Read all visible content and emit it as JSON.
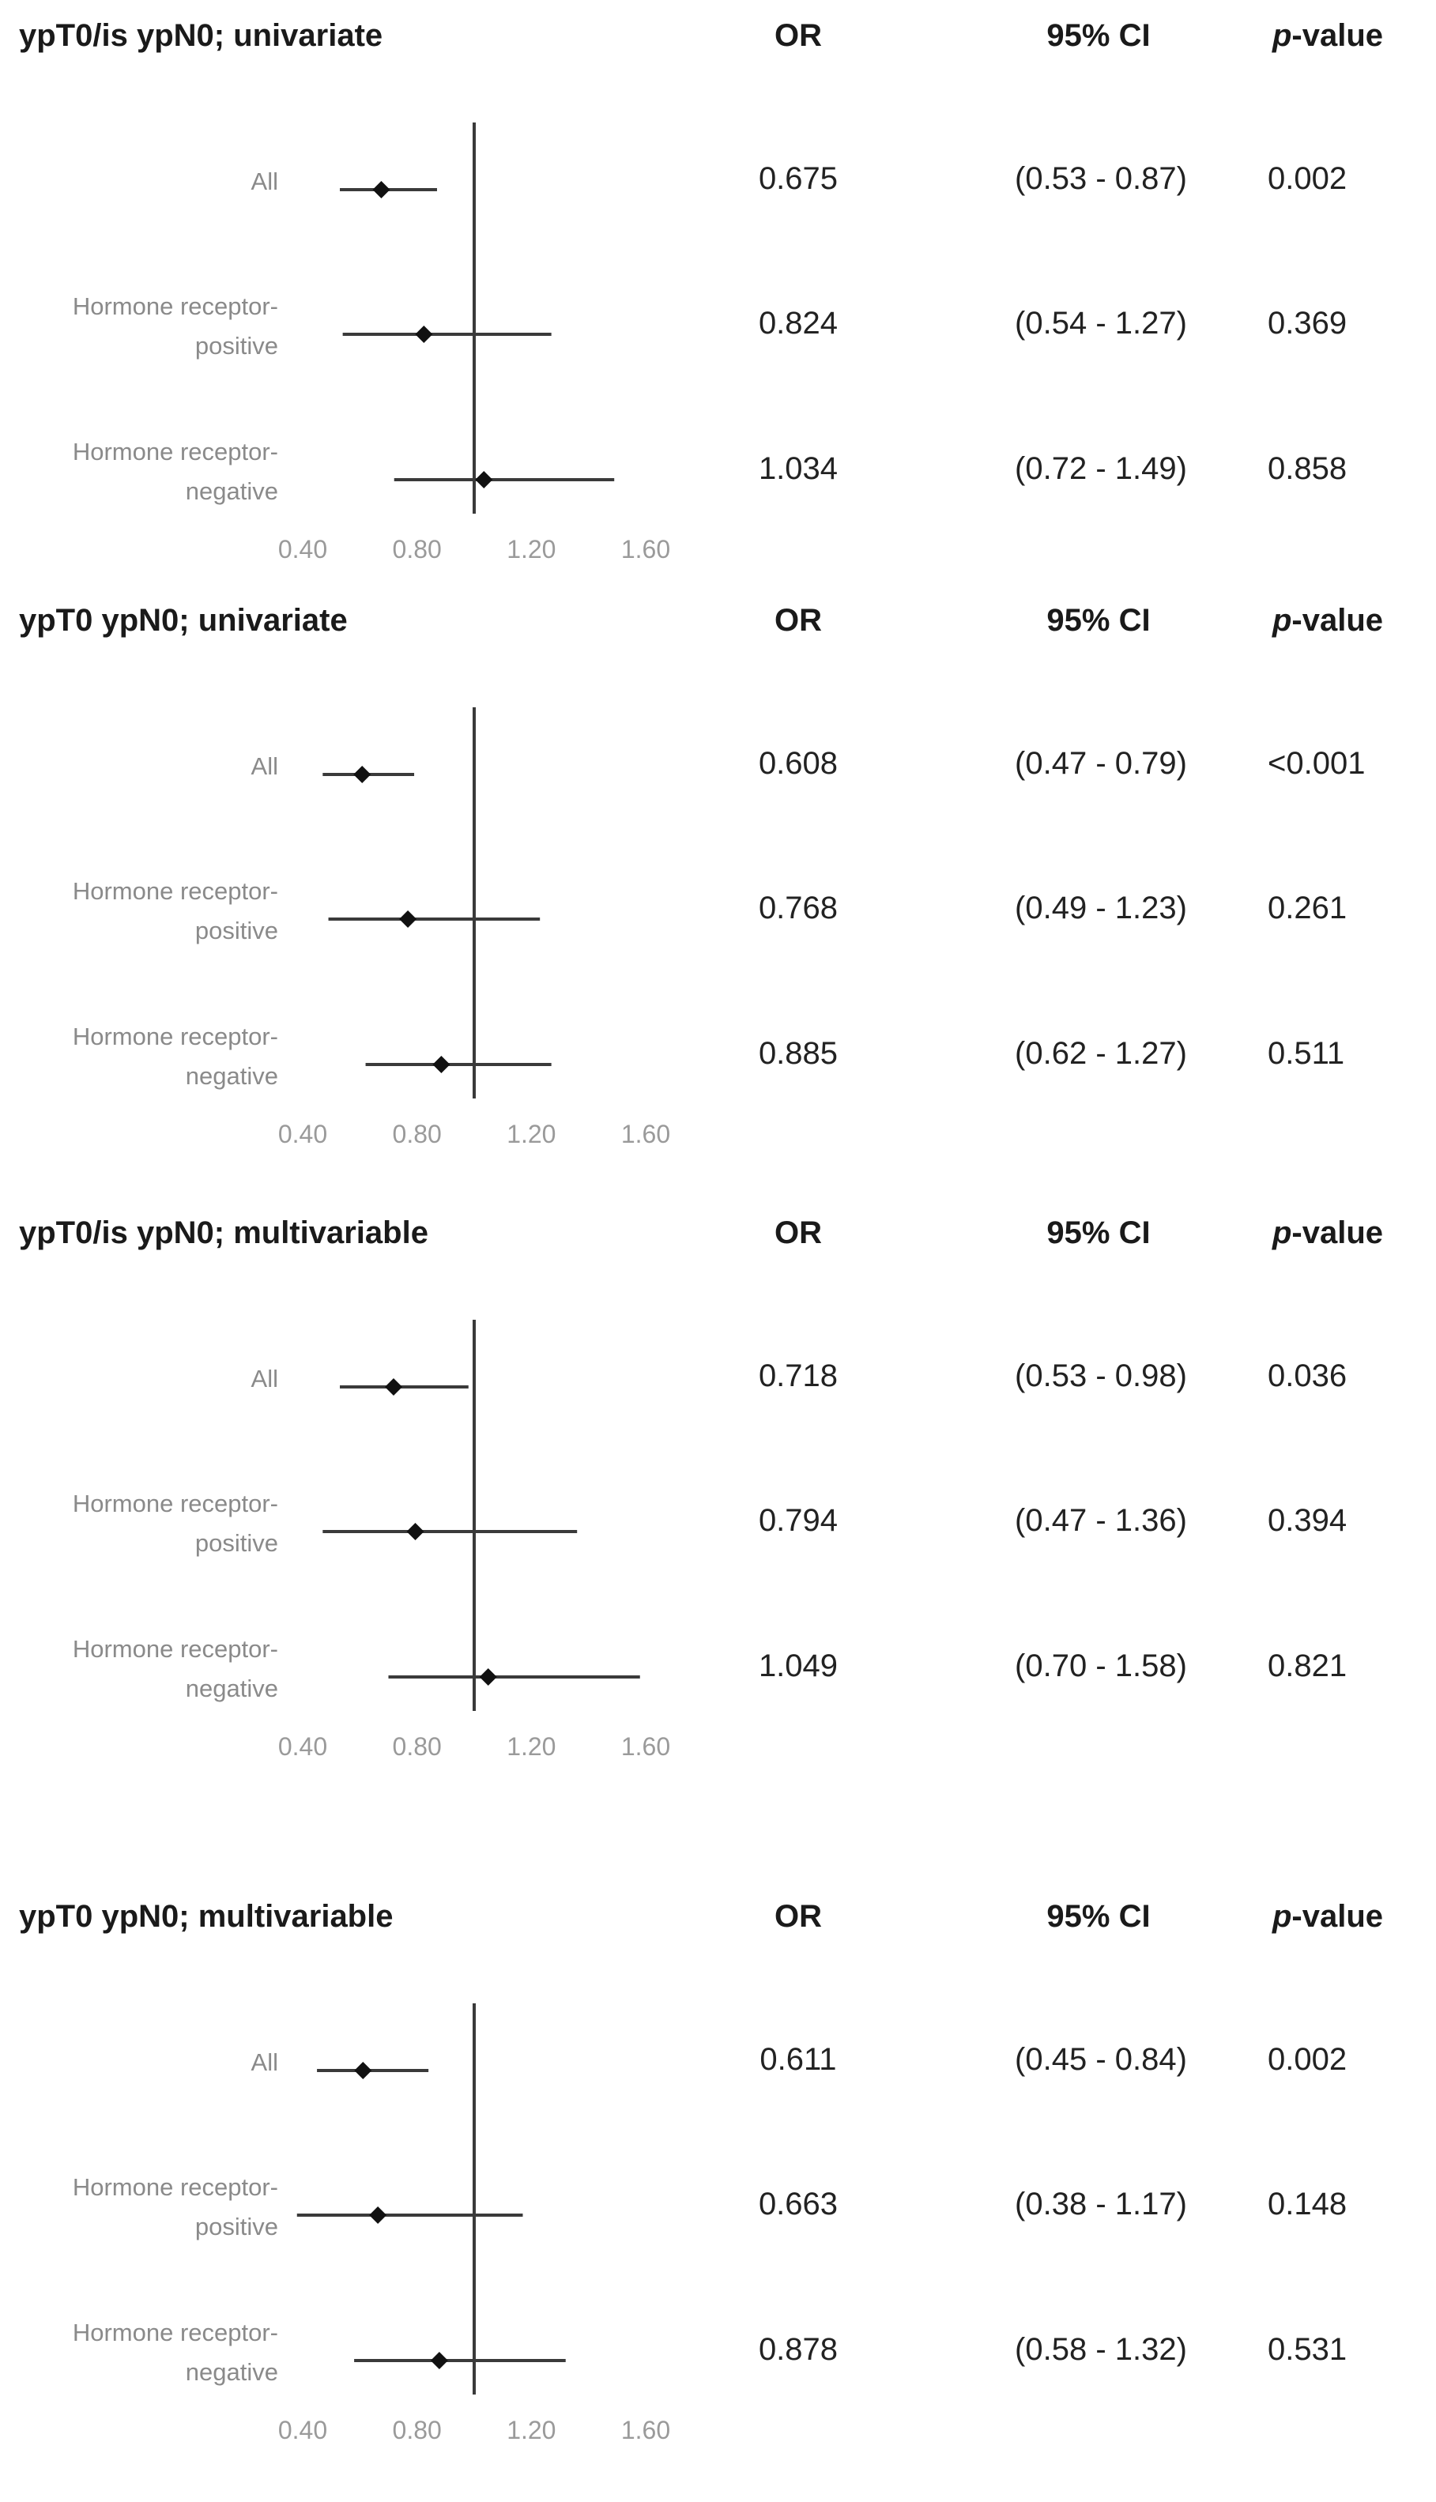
{
  "colors": {
    "line": "#3a3a3a",
    "marker": "#111111",
    "tick_text": "#9a9a9a",
    "label_text": "#8a8a8a"
  },
  "chart_data": [
    {
      "type": "forest",
      "title": "ypT0/is ypN0; univariate",
      "headers": {
        "or": "OR",
        "ci": "95% CI",
        "p_italic": "p",
        "p_rest": "-value"
      },
      "xlim": [
        0.4,
        1.6
      ],
      "xticks": [
        0.4,
        0.8,
        1.2,
        1.6
      ],
      "xtick_labels": [
        "0.40",
        "0.80",
        "1.20",
        "1.60"
      ],
      "reference_line": 1.0,
      "grid": false,
      "rows": [
        {
          "label_lines": [
            "All"
          ],
          "or": 0.675,
          "lo": 0.53,
          "hi": 0.87,
          "or_text": "0.675",
          "ci_text": "(0.53 - 0.87)",
          "p_text": "0.002"
        },
        {
          "label_lines": [
            "Hormone receptor-",
            "positive"
          ],
          "or": 0.824,
          "lo": 0.54,
          "hi": 1.27,
          "or_text": "0.824",
          "ci_text": "(0.54 - 1.27)",
          "p_text": "0.369"
        },
        {
          "label_lines": [
            "Hormone receptor-",
            "negative"
          ],
          "or": 1.034,
          "lo": 0.72,
          "hi": 1.49,
          "or_text": "1.034",
          "ci_text": "(0.72 - 1.49)",
          "p_text": "0.858"
        }
      ]
    },
    {
      "type": "forest",
      "title": "ypT0 ypN0; univariate",
      "headers": {
        "or": "OR",
        "ci": "95% CI",
        "p_italic": "p",
        "p_rest": "-value"
      },
      "xlim": [
        0.4,
        1.6
      ],
      "xticks": [
        0.4,
        0.8,
        1.2,
        1.6
      ],
      "xtick_labels": [
        "0.40",
        "0.80",
        "1.20",
        "1.60"
      ],
      "reference_line": 1.0,
      "grid": false,
      "rows": [
        {
          "label_lines": [
            "All"
          ],
          "or": 0.608,
          "lo": 0.47,
          "hi": 0.79,
          "or_text": "0.608",
          "ci_text": "(0.47 - 0.79)",
          "p_text": "<0.001"
        },
        {
          "label_lines": [
            "Hormone receptor-",
            "positive"
          ],
          "or": 0.768,
          "lo": 0.49,
          "hi": 1.23,
          "or_text": "0.768",
          "ci_text": "(0.49 - 1.23)",
          "p_text": "0.261"
        },
        {
          "label_lines": [
            "Hormone receptor-",
            "negative"
          ],
          "or": 0.885,
          "lo": 0.62,
          "hi": 1.27,
          "or_text": "0.885",
          "ci_text": "(0.62 - 1.27)",
          "p_text": "0.511"
        }
      ]
    },
    {
      "type": "forest",
      "title": "ypT0/is ypN0; multivariable",
      "headers": {
        "or": "OR",
        "ci": "95% CI",
        "p_italic": "p",
        "p_rest": "-value"
      },
      "xlim": [
        0.4,
        1.6
      ],
      "xticks": [
        0.4,
        0.8,
        1.2,
        1.6
      ],
      "xtick_labels": [
        "0.40",
        "0.80",
        "1.20",
        "1.60"
      ],
      "reference_line": 1.0,
      "grid": false,
      "rows": [
        {
          "label_lines": [
            "All"
          ],
          "or": 0.718,
          "lo": 0.53,
          "hi": 0.98,
          "or_text": "0.718",
          "ci_text": "(0.53 - 0.98)",
          "p_text": "0.036"
        },
        {
          "label_lines": [
            "Hormone receptor-",
            "positive"
          ],
          "or": 0.794,
          "lo": 0.47,
          "hi": 1.36,
          "or_text": "0.794",
          "ci_text": "(0.47 - 1.36)",
          "p_text": "0.394"
        },
        {
          "label_lines": [
            "Hormone receptor-",
            "negative"
          ],
          "or": 1.049,
          "lo": 0.7,
          "hi": 1.58,
          "or_text": "1.049",
          "ci_text": "(0.70 - 1.58)",
          "p_text": "0.821"
        }
      ]
    },
    {
      "type": "forest",
      "title": "ypT0 ypN0; multivariable",
      "headers": {
        "or": "OR",
        "ci": "95% CI",
        "p_italic": "p",
        "p_rest": "-value"
      },
      "xlim": [
        0.4,
        1.6
      ],
      "xticks": [
        0.4,
        0.8,
        1.2,
        1.6
      ],
      "xtick_labels": [
        "0.40",
        "0.80",
        "1.20",
        "1.60"
      ],
      "reference_line": 1.0,
      "grid": false,
      "rows": [
        {
          "label_lines": [
            "All"
          ],
          "or": 0.611,
          "lo": 0.45,
          "hi": 0.84,
          "or_text": "0.611",
          "ci_text": "(0.45 - 0.84)",
          "p_text": "0.002"
        },
        {
          "label_lines": [
            "Hormone receptor-",
            "positive"
          ],
          "or": 0.663,
          "lo": 0.38,
          "hi": 1.17,
          "or_text": "0.663",
          "ci_text": "(0.38 - 1.17)",
          "p_text": "0.148"
        },
        {
          "label_lines": [
            "Hormone receptor-",
            "negative"
          ],
          "or": 0.878,
          "lo": 0.58,
          "hi": 1.32,
          "or_text": "0.878",
          "ci_text": "(0.58 - 1.32)",
          "p_text": "0.531"
        }
      ]
    }
  ]
}
